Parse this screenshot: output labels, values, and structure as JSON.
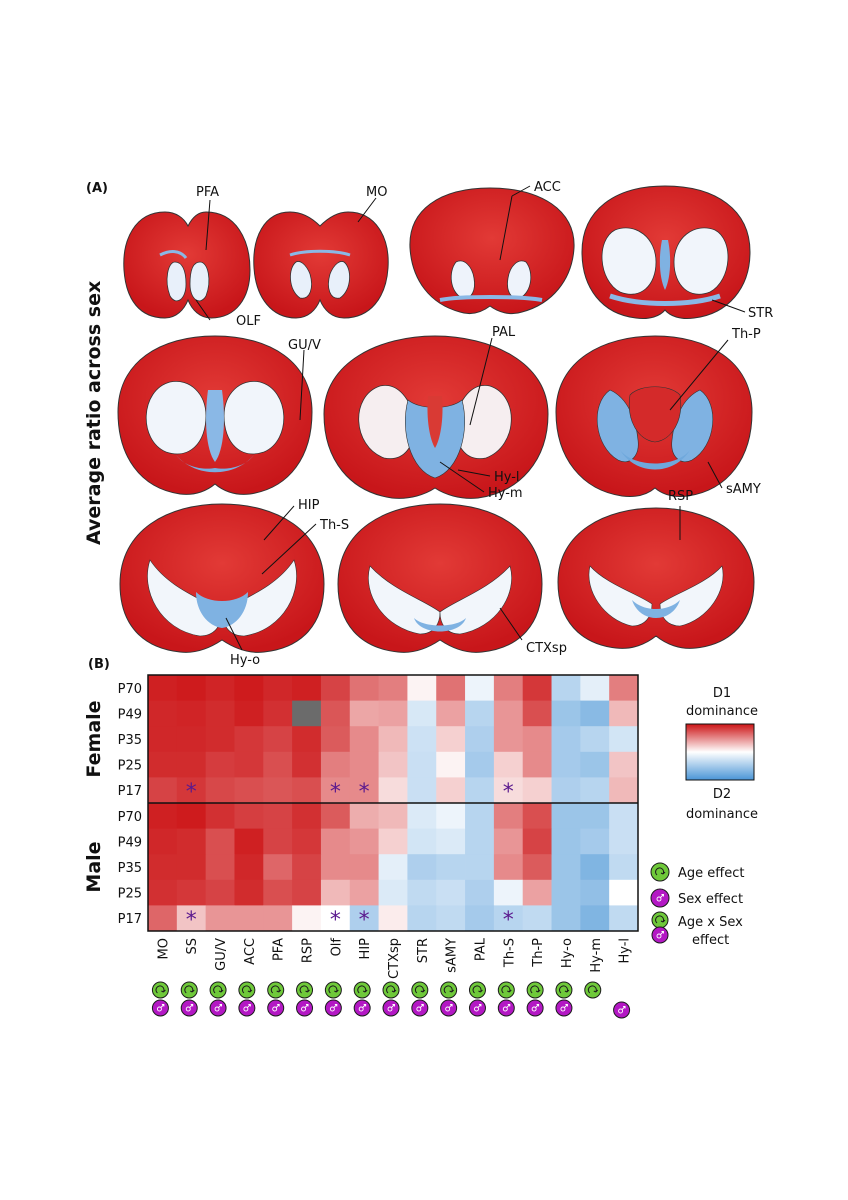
{
  "panel_a": {
    "label": "(A)",
    "y_title": "Average ratio across sex",
    "region_labels": [
      "PFA",
      "MO",
      "ACC",
      "OLF",
      "STR",
      "GU/V",
      "PAL",
      "Th-P",
      "Hy-l",
      "Hy-m",
      "sAMY",
      "HIP",
      "Th-S",
      "RSP",
      "Hy-o",
      "CTXsp"
    ]
  },
  "chart_data": {
    "type": "heatmap",
    "title": "(B)",
    "columns": [
      "MO",
      "SS",
      "GU/V",
      "ACC",
      "PFA",
      "RSP",
      "Olf",
      "HIP",
      "CTXsp",
      "STR",
      "sAMY",
      "PAL",
      "Th-S",
      "Th-P",
      "Hy-o",
      "Hy-m",
      "Hy-l"
    ],
    "value_range": [
      -1,
      1
    ],
    "groups": [
      {
        "name": "Female",
        "rows": [
          "P70",
          "P49",
          "P35",
          "P25",
          "P17"
        ],
        "values": [
          [
            0.95,
            0.97,
            0.93,
            0.97,
            0.92,
            0.95,
            0.8,
            0.6,
            0.55,
            0.05,
            0.6,
            -0.1,
            0.55,
            0.85,
            -0.4,
            -0.15,
            0.55
          ],
          [
            0.92,
            0.93,
            0.9,
            0.95,
            0.88,
            null,
            0.72,
            0.38,
            0.4,
            -0.22,
            0.4,
            -0.4,
            0.45,
            0.75,
            -0.55,
            -0.65,
            0.3
          ],
          [
            0.92,
            0.92,
            0.9,
            0.85,
            0.8,
            0.9,
            0.7,
            0.5,
            0.3,
            -0.28,
            0.2,
            -0.45,
            0.45,
            0.5,
            -0.5,
            -0.4,
            -0.25
          ],
          [
            0.9,
            0.9,
            0.83,
            0.85,
            0.75,
            0.88,
            0.55,
            0.5,
            0.25,
            -0.3,
            0.05,
            -0.5,
            0.2,
            0.5,
            -0.5,
            -0.55,
            0.25
          ],
          [
            0.8,
            0.85,
            0.78,
            0.75,
            0.72,
            0.75,
            0.5,
            0.5,
            0.15,
            -0.3,
            0.2,
            -0.4,
            0.15,
            0.2,
            -0.45,
            -0.4,
            0.3
          ]
        ],
        "significance": [
          {
            "row": "P17",
            "column": "SS"
          },
          {
            "row": "P17",
            "column": "Olf"
          },
          {
            "row": "P17",
            "column": "HIP"
          },
          {
            "row": "P17",
            "column": "Th-S"
          }
        ]
      },
      {
        "name": "Male",
        "rows": [
          "P70",
          "P49",
          "P35",
          "P25",
          "P17"
        ],
        "values": [
          [
            0.95,
            0.97,
            0.88,
            0.82,
            0.8,
            0.88,
            0.7,
            0.35,
            0.3,
            -0.2,
            -0.1,
            -0.4,
            0.55,
            0.75,
            -0.55,
            -0.55,
            -0.3
          ],
          [
            0.92,
            0.9,
            0.75,
            0.95,
            0.8,
            0.85,
            0.5,
            0.45,
            0.2,
            -0.25,
            -0.2,
            -0.4,
            0.45,
            0.8,
            -0.55,
            -0.5,
            -0.3
          ],
          [
            0.9,
            0.9,
            0.75,
            0.92,
            0.65,
            0.8,
            0.5,
            0.5,
            -0.15,
            -0.45,
            -0.4,
            -0.4,
            0.5,
            0.7,
            -0.55,
            -0.7,
            -0.35
          ],
          [
            0.88,
            0.85,
            0.8,
            0.9,
            0.75,
            0.8,
            0.3,
            0.4,
            -0.2,
            -0.35,
            -0.3,
            -0.45,
            -0.1,
            0.4,
            -0.55,
            -0.6,
            0.0
          ],
          [
            0.65,
            0.25,
            0.45,
            0.45,
            0.45,
            0.05,
            0.0,
            -0.45,
            0.08,
            -0.4,
            -0.35,
            -0.5,
            -0.4,
            -0.35,
            -0.55,
            -0.7,
            -0.35
          ]
        ],
        "significance": [
          {
            "row": "P17",
            "column": "SS"
          },
          {
            "row": "P17",
            "column": "Olf"
          },
          {
            "row": "P17",
            "column": "HIP"
          },
          {
            "row": "P17",
            "column": "Th-S"
          }
        ]
      }
    ],
    "legend": {
      "top_label": "D1 dominance",
      "bottom_label": "D2 dominance",
      "high_color": "#cc1416",
      "low_color": "#4a95d6",
      "missing_color": "#6b6b6b"
    },
    "effects": {
      "age_label": "Age effect",
      "sex_label": "Sex effect",
      "interaction_label": "Age x Sex effect",
      "age_color": "#6fc93a",
      "sex_color": "#b318c4",
      "per_region": [
        {
          "column": "MO",
          "age": true,
          "sex": true
        },
        {
          "column": "SS",
          "age": true,
          "sex": true
        },
        {
          "column": "GU/V",
          "age": true,
          "sex": true
        },
        {
          "column": "ACC",
          "age": true,
          "sex": true
        },
        {
          "column": "PFA",
          "age": true,
          "sex": true
        },
        {
          "column": "RSP",
          "age": true,
          "sex": true
        },
        {
          "column": "Olf",
          "age": true,
          "sex": true
        },
        {
          "column": "HIP",
          "age": true,
          "sex": true
        },
        {
          "column": "CTXsp",
          "age": true,
          "sex": true
        },
        {
          "column": "STR",
          "age": true,
          "sex": true
        },
        {
          "column": "sAMY",
          "age": true,
          "sex": true
        },
        {
          "column": "PAL",
          "age": true,
          "sex": true
        },
        {
          "column": "Th-S",
          "age": true,
          "sex": true
        },
        {
          "column": "Th-P",
          "age": true,
          "sex": true
        },
        {
          "column": "Hy-o",
          "age": true,
          "sex": true
        },
        {
          "column": "Hy-m",
          "age": true,
          "sex": false
        },
        {
          "column": "Hy-l",
          "age": false,
          "sex": true
        }
      ]
    }
  }
}
